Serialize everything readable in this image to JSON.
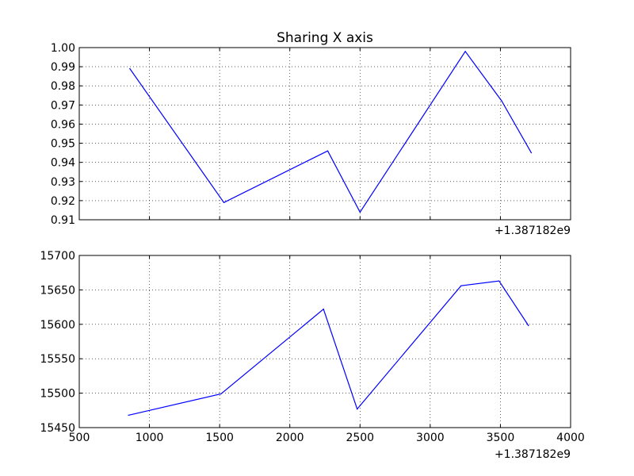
{
  "figure": {
    "background": "#ffffff"
  },
  "chart_data": [
    {
      "type": "line",
      "title": "Sharing X axis",
      "xlabel": "",
      "ylabel": "",
      "xlim": [
        500,
        4000
      ],
      "ylim": [
        0.91,
        1.0
      ],
      "x_offset_label": "+1.387182e9",
      "x_tick_labels_visible": false,
      "x_ticks": [
        1000,
        1500,
        2000,
        2500,
        3000,
        3500,
        4000
      ],
      "y_ticks": [
        0.91,
        0.92,
        0.93,
        0.94,
        0.95,
        0.96,
        0.97,
        0.98,
        0.99,
        1.0
      ],
      "y_tick_labels": [
        "0.91",
        "0.92",
        "0.93",
        "0.94",
        "0.95",
        "0.96",
        "0.97",
        "0.98",
        "0.99",
        "1.00"
      ],
      "grid": true,
      "series": [
        {
          "color": "#0000ff",
          "x": [
            860,
            1530,
            2270,
            2500,
            3250,
            3510,
            3720
          ],
          "y": [
            0.989,
            0.919,
            0.946,
            0.914,
            0.998,
            0.972,
            0.945
          ]
        }
      ]
    },
    {
      "type": "line",
      "title": "",
      "xlabel": "",
      "ylabel": "",
      "xlim": [
        500,
        4000
      ],
      "ylim": [
        15450,
        15700
      ],
      "x_offset_label": "+1.387182e9",
      "x_tick_labels_visible": true,
      "x_ticks": [
        500,
        1000,
        1500,
        2000,
        2500,
        3000,
        3500,
        4000
      ],
      "x_tick_labels": [
        "500",
        "1000",
        "1500",
        "2000",
        "2500",
        "3000",
        "3500",
        "4000"
      ],
      "y_ticks": [
        15450,
        15500,
        15550,
        15600,
        15650,
        15700
      ],
      "y_tick_labels": [
        "15450",
        "15500",
        "15550",
        "15600",
        "15650",
        "15700"
      ],
      "grid": true,
      "series": [
        {
          "color": "#0000ff",
          "x": [
            850,
            1510,
            2240,
            2480,
            3220,
            3490,
            3700
          ],
          "y": [
            15468,
            15499,
            15622,
            15477,
            15656,
            15663,
            15598
          ]
        }
      ]
    }
  ]
}
